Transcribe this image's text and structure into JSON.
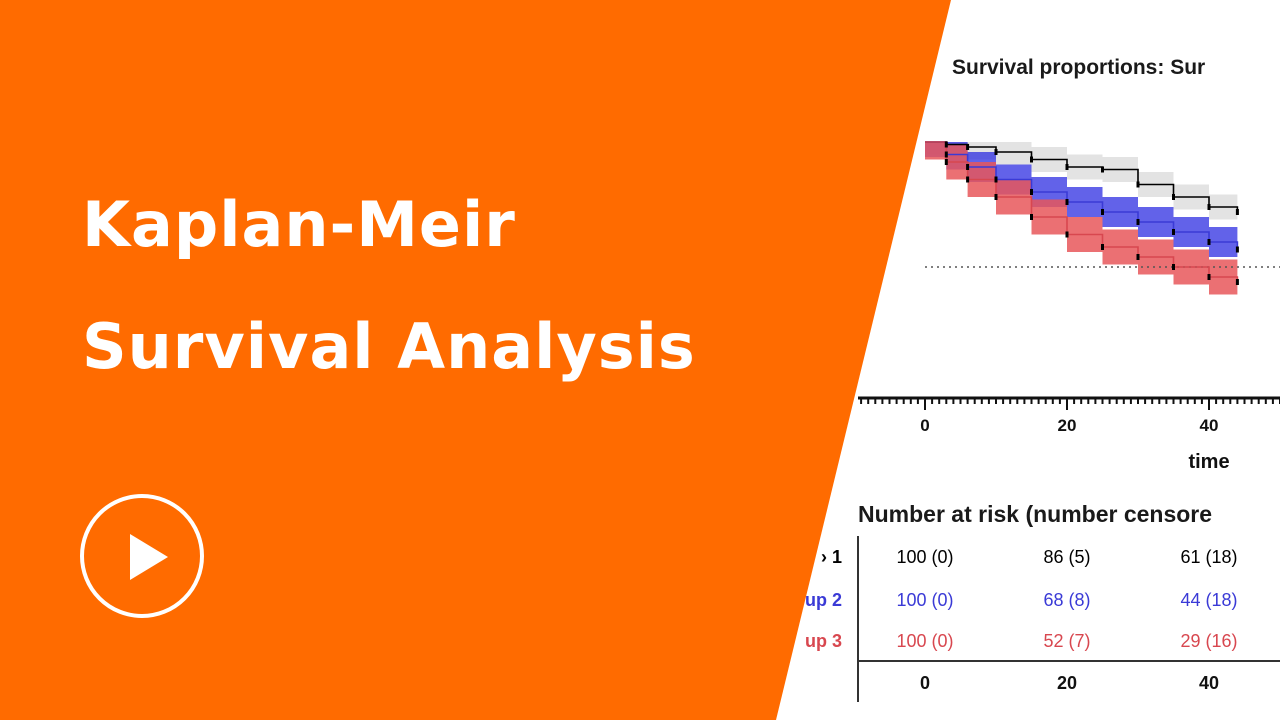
{
  "title": {
    "line1": "Kaplan-Meir",
    "line2": "Survival Analysis"
  },
  "play_button": {
    "icon": "play-icon",
    "label": "Play video"
  },
  "colors": {
    "brand_orange": "#ff6b00",
    "group1": "#000000",
    "group1_band": "#d9d9d9",
    "group2": "#3a3ad6",
    "group2_band": "#1f1fe0",
    "group3": "#d8474f",
    "group3_band": "#e8575b",
    "white": "#ffffff"
  },
  "chart_data": {
    "type": "line",
    "title": "Survival proportions: Sur",
    "xlabel": "time",
    "x_ticks": [
      "0",
      "20",
      "40"
    ],
    "series": [
      {
        "x": [
          0,
          3,
          6,
          10,
          15,
          20,
          25,
          30,
          35,
          40,
          44
        ],
        "y": [
          100,
          99,
          98,
          96,
          93,
          90,
          89,
          83,
          78,
          74,
          72
        ]
      },
      {
        "x": [
          0,
          3,
          6,
          10,
          15,
          20,
          25,
          30,
          35,
          40,
          44
        ],
        "y": [
          100,
          95,
          90,
          85,
          80,
          76,
          72,
          68,
          64,
          60,
          57
        ]
      },
      {
        "x": [
          0,
          3,
          6,
          10,
          15,
          20,
          25,
          30,
          35,
          40,
          44
        ],
        "y": [
          100,
          92,
          85,
          78,
          70,
          63,
          58,
          54,
          50,
          46,
          44
        ]
      }
    ],
    "reference_line_y": 50,
    "risk_table": {
      "title": "Number at risk (number censore",
      "rows": [
        {
          "label": "› 1",
          "values": [
            "100 (0)",
            "86 (5)",
            "61 (18)"
          ]
        },
        {
          "label": "up 2",
          "values": [
            "100 (0)",
            "68 (8)",
            "44 (18)"
          ]
        },
        {
          "label": "up 3",
          "values": [
            "100 (0)",
            "52 (7)",
            "29 (16)"
          ]
        }
      ],
      "footer": [
        "0",
        "20",
        "40"
      ]
    }
  }
}
